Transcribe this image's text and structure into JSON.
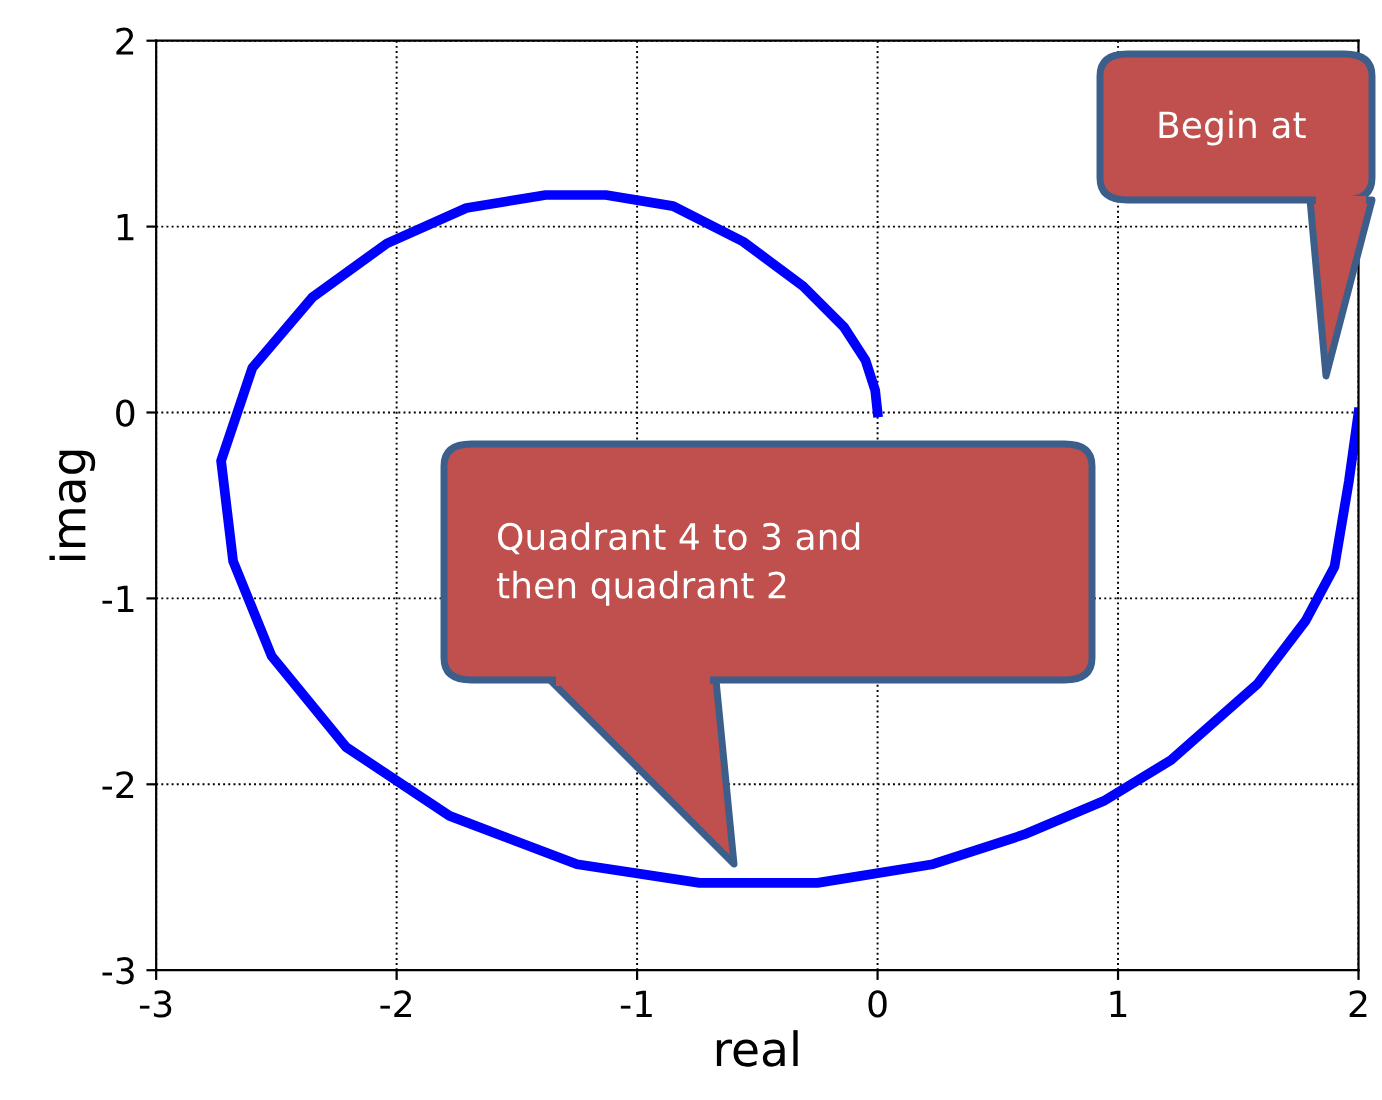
{
  "chart_data": {
    "type": "line",
    "xlabel": "real",
    "ylabel": "imag",
    "xlim": [
      -3,
      2
    ],
    "ylim": [
      -3,
      2
    ],
    "xticks": [
      -3,
      -2,
      -1,
      0,
      1,
      2
    ],
    "yticks": [
      -3,
      -2,
      -1,
      0,
      1,
      2
    ],
    "grid": true,
    "line_style": "solid",
    "series": [
      {
        "color": "#0000ff",
        "x": [
          2.0,
          1.96,
          1.9,
          1.78,
          1.58,
          1.22,
          0.94,
          0.61,
          0.23,
          -0.25,
          -0.74,
          -1.25,
          -1.78,
          -2.21,
          -2.52,
          -2.68,
          -2.73,
          -2.6,
          -2.35,
          -2.04,
          -1.71,
          -1.38,
          -1.13,
          -0.85,
          -0.56,
          -0.31,
          -0.14,
          -0.05,
          -0.01,
          0.0
        ],
        "values": [
          0.0,
          -0.37,
          -0.83,
          -1.12,
          -1.46,
          -1.87,
          -2.09,
          -2.27,
          -2.43,
          -2.53,
          -2.53,
          -2.43,
          -2.17,
          -1.8,
          -1.31,
          -0.8,
          -0.26,
          0.24,
          0.62,
          0.91,
          1.1,
          1.17,
          1.17,
          1.11,
          0.92,
          0.68,
          0.46,
          0.28,
          0.12,
          0.0
        ]
      }
    ],
    "annotations": [
      "Begin at",
      "Quadrant 4 to 3 and\nthen quadrant 2"
    ]
  }
}
